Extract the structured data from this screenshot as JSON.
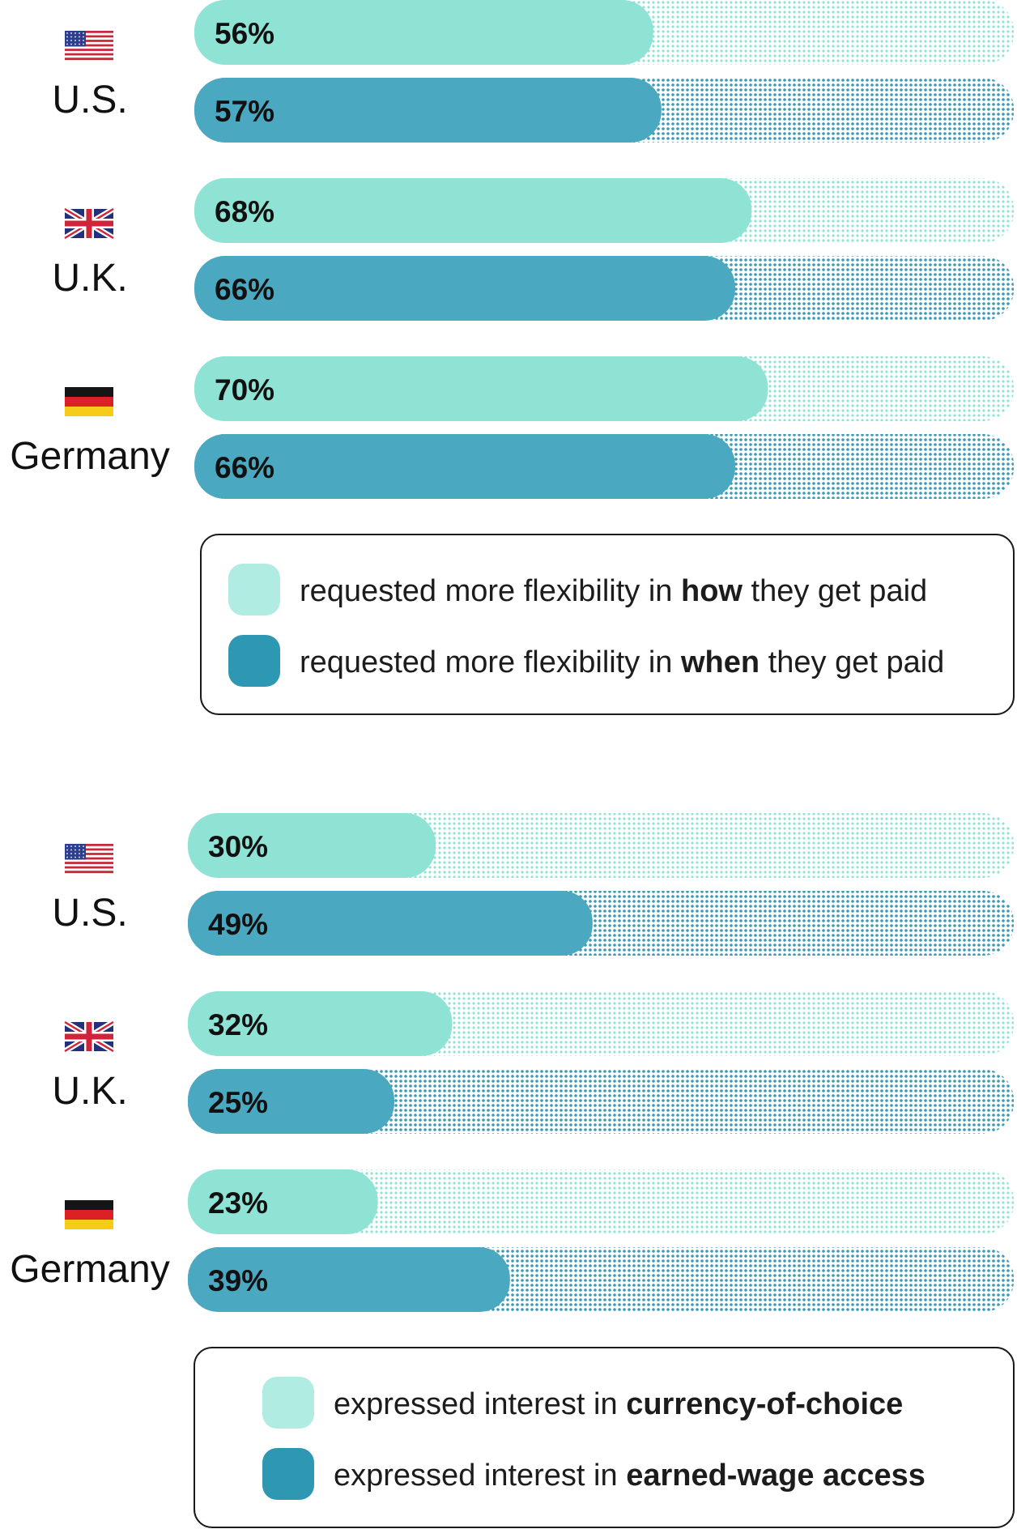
{
  "colors": {
    "how": "#8ee3d5",
    "when": "#4aa8c0",
    "how_legend": "#b0ece2",
    "when_legend": "#2e98b3",
    "dot_how": "#8ee3d5",
    "dot_when": "#3b9ab6"
  },
  "chart_data": [
    {
      "type": "bar",
      "categories": [
        "U.S.",
        "U.K.",
        "Germany"
      ],
      "series": [
        {
          "name": "requested more flexibility in how they get paid",
          "values": [
            56,
            68,
            70
          ]
        },
        {
          "name": "requested more flexibility in when they get paid",
          "values": [
            57,
            66,
            66
          ]
        }
      ],
      "value_labels": {
        "how": [
          "56%",
          "68%",
          "70%"
        ],
        "when": [
          "57%",
          "66%",
          "66%"
        ]
      },
      "legend": [
        {
          "prefix": "requested more flexibility in ",
          "bold": "how",
          "suffix": " they get paid"
        },
        {
          "prefix": "requested more flexibility in ",
          "bold": "when",
          "suffix": " they get paid"
        }
      ],
      "xlim": [
        0,
        100
      ]
    },
    {
      "type": "bar",
      "categories": [
        "U.S.",
        "U.K.",
        "Germany"
      ],
      "series": [
        {
          "name": "expressed interest in currency-of-choice",
          "values": [
            30,
            32,
            23
          ]
        },
        {
          "name": "expressed interest in earned-wage access",
          "values": [
            49,
            25,
            39
          ]
        }
      ],
      "value_labels": {
        "how": [
          "30%",
          "32%",
          "23%"
        ],
        "when": [
          "49%",
          "25%",
          "39%"
        ]
      },
      "legend": [
        {
          "prefix": "expressed interest in ",
          "bold": "currency-of-choice",
          "suffix": ""
        },
        {
          "prefix": "expressed interest in ",
          "bold": "earned-wage access",
          "suffix": ""
        }
      ],
      "xlim": [
        0,
        100
      ]
    }
  ],
  "flags": [
    "us-flag-icon",
    "uk-flag-icon",
    "germany-flag-icon"
  ]
}
